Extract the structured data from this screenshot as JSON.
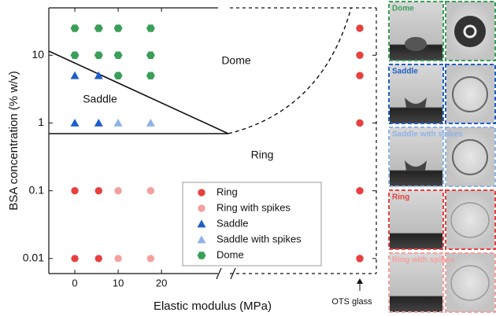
{
  "chart_data": {
    "type": "scatter",
    "xlabel": "Elastic modulus (MPa)",
    "ylabel": "BSA concentration (% w/v)",
    "xlim": [
      -6,
      33.6
    ],
    "xticks": [
      0,
      10,
      20
    ],
    "ylim": [
      0.006,
      50
    ],
    "yticks": [
      0.01,
      0.1,
      1,
      10
    ],
    "log_y": true,
    "legend": "lower center",
    "series": [
      {
        "name": "Ring",
        "color": "#e8403f",
        "marker": "circle",
        "x": [
          0,
          5.5,
          0,
          5.5
        ],
        "values": [
          0.1,
          0.1,
          0.01,
          0.01
        ]
      },
      {
        "name": "Ring with spikes",
        "color": "#f3a09e",
        "marker": "circle",
        "x": [
          10,
          17.5,
          10,
          17.5
        ],
        "values": [
          0.1,
          0.1,
          0.01,
          0.01
        ]
      },
      {
        "name": "Saddle",
        "color": "#1f5fc8",
        "marker": "triangle",
        "x": [
          0,
          5.5,
          0,
          5.5
        ],
        "values": [
          5,
          5,
          1,
          1
        ]
      },
      {
        "name": "Saddle with spikes",
        "color": "#8fb3e6",
        "marker": "triangle",
        "x": [
          10,
          17.5
        ],
        "values": [
          1,
          1
        ]
      },
      {
        "name": "Dome",
        "color": "#3a9f58",
        "marker": "hexagon",
        "x": [
          0,
          5.5,
          10,
          17.5,
          0,
          5.5,
          10,
          17.5,
          10,
          17.5
        ],
        "values": [
          25,
          25,
          25,
          25,
          10,
          10,
          10,
          10,
          5,
          5
        ]
      }
    ],
    "ots": {
      "label": "OTS glass",
      "values": [
        25,
        10,
        5,
        1,
        0.1,
        0.01
      ]
    },
    "annotations": [
      "Dome",
      "Saddle",
      "Ring"
    ]
  },
  "panels": [
    {
      "label": "Dome",
      "color": "#3a9f58"
    },
    {
      "label": "Saddle",
      "color": "#1f5fc8"
    },
    {
      "label": "Saddle with spikes",
      "color": "#8fb3e6"
    },
    {
      "label": "Ring",
      "color": "#e8403f"
    },
    {
      "label": "Ring with spikes",
      "color": "#f3a09e"
    }
  ]
}
